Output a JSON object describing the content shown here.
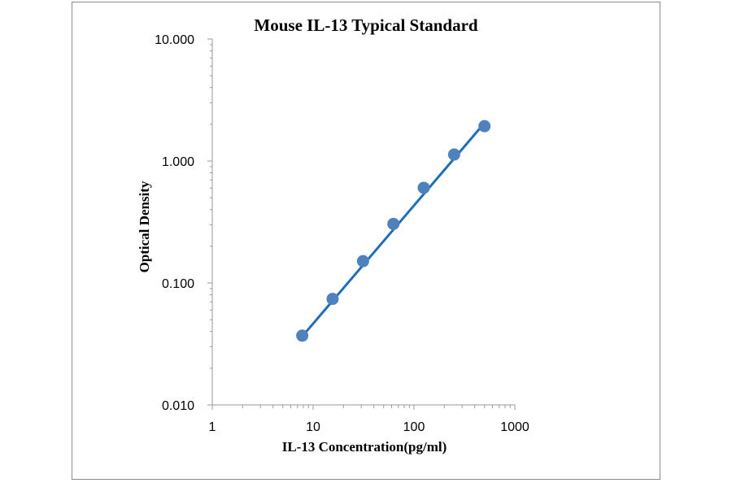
{
  "chart_data": {
    "type": "scatter",
    "title": "Mouse IL-13 Typical Standard",
    "xlabel": "IL-13 Concentration(pg/ml)",
    "ylabel": "Optical Density",
    "x_scale": "log",
    "y_scale": "log",
    "xlim": [
      1,
      1000
    ],
    "ylim": [
      0.01,
      10
    ],
    "x_ticks": [
      "1",
      "10",
      "100",
      "1000"
    ],
    "y_ticks": [
      "0.010",
      "0.100",
      "1.000",
      "10.000"
    ],
    "grid": false,
    "legend": "none",
    "series": [
      {
        "color": "#4f81bd",
        "line_color": "#1f6fb5",
        "points": [
          {
            "x": 7.8,
            "y": 0.037
          },
          {
            "x": 15.6,
            "y": 0.074
          },
          {
            "x": 31.25,
            "y": 0.151
          },
          {
            "x": 62.5,
            "y": 0.305
          },
          {
            "x": 125,
            "y": 0.603
          },
          {
            "x": 250,
            "y": 1.13
          },
          {
            "x": 500,
            "y": 1.93
          }
        ],
        "trendline": {
          "x_start": 7.8,
          "y_start": 0.0365,
          "x_end": 500,
          "y_end": 2.05
        }
      }
    ]
  }
}
